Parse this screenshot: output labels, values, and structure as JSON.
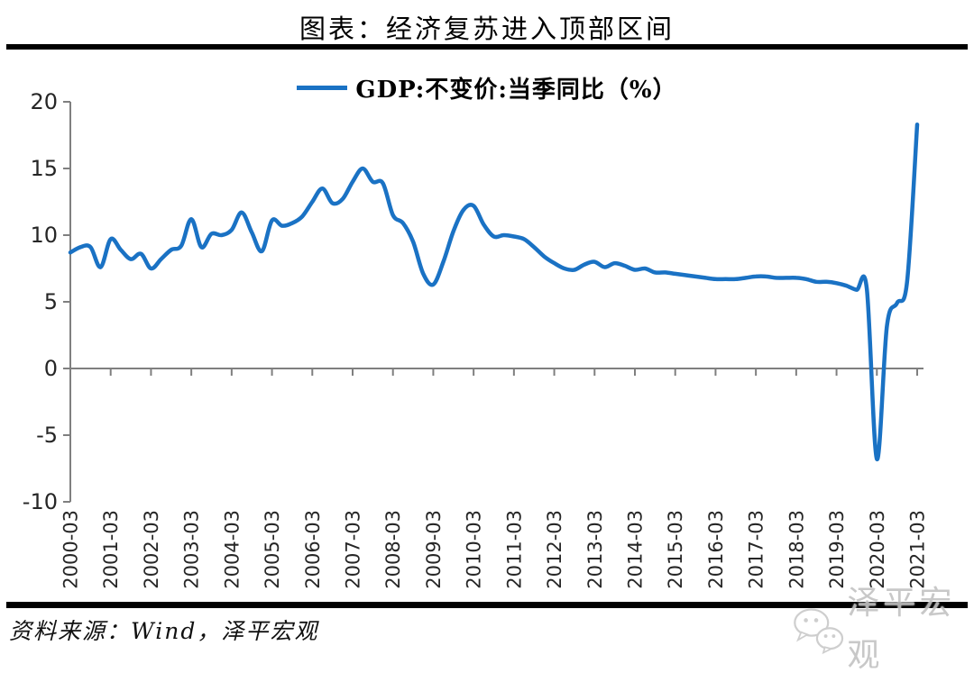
{
  "page": {
    "title": "图表：经济复苏进入顶部区间",
    "source_note": "资料来源：Wind，泽平宏观",
    "watermark": "泽平宏观"
  },
  "chart_data": {
    "type": "line",
    "title": "图表：经济复苏进入顶部区间",
    "legend_position": "top-center",
    "grid": false,
    "line_color": "#1a72c4",
    "axis_color": "#7f7f7f",
    "tick_label_color": "#262626",
    "ylim": [
      -10,
      20
    ],
    "ytick_interval": 5,
    "yticks": [
      20,
      15,
      10,
      5,
      0,
      -5,
      -10
    ],
    "x_freq": "quarterly",
    "x_start": "2000-Q1",
    "x_end": "2021-Q1",
    "x_label_rotation": -90,
    "x_tick_labels": [
      "2000-03",
      "2001-03",
      "2002-03",
      "2003-03",
      "2004-03",
      "2005-03",
      "2006-03",
      "2007-03",
      "2008-03",
      "2009-03",
      "2010-03",
      "2011-03",
      "2012-03",
      "2013-03",
      "2014-03",
      "2015-03",
      "2016-03",
      "2017-03",
      "2018-03",
      "2019-03",
      "2020-03",
      "2021-03"
    ],
    "series": [
      {
        "name": "GDP:不变价:当季同比（%）",
        "values": [
          8.7,
          9.1,
          9.1,
          7.6,
          9.7,
          8.9,
          8.2,
          8.6,
          7.5,
          8.2,
          8.9,
          9.2,
          11.2,
          9.1,
          10.1,
          10.0,
          10.4,
          11.7,
          10.2,
          8.8,
          11.1,
          10.7,
          10.9,
          11.4,
          12.5,
          13.5,
          12.4,
          12.7,
          14.0,
          15.0,
          14.0,
          13.9,
          11.5,
          10.9,
          9.5,
          7.1,
          6.3,
          8.0,
          10.3,
          11.9,
          12.2,
          10.8,
          9.9,
          10.0,
          9.9,
          9.7,
          9.1,
          8.4,
          7.9,
          7.5,
          7.4,
          7.8,
          8.0,
          7.6,
          7.9,
          7.7,
          7.4,
          7.5,
          7.2,
          7.2,
          7.1,
          7.0,
          6.9,
          6.8,
          6.7,
          6.7,
          6.7,
          6.8,
          6.9,
          6.9,
          6.8,
          6.8,
          6.8,
          6.7,
          6.5,
          6.5,
          6.4,
          6.2,
          5.9,
          6.0,
          -6.8,
          3.2,
          4.9,
          6.5,
          18.3
        ]
      }
    ]
  }
}
